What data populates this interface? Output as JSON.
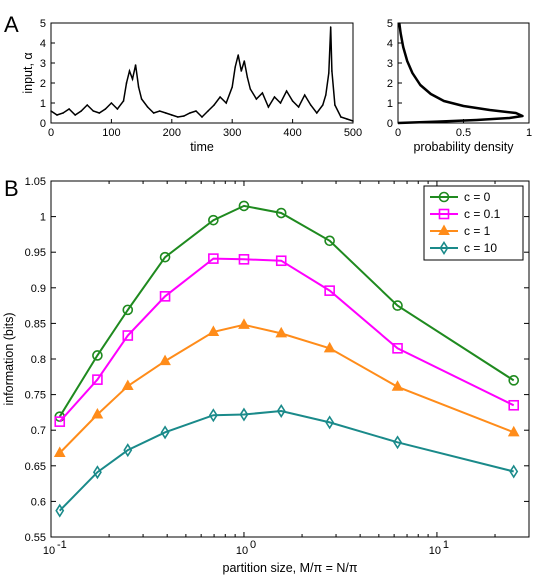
{
  "panel_labels": {
    "a": "A",
    "b": "B"
  },
  "chart_data": [
    {
      "type": "line",
      "panel": "A-left",
      "xlabel": "time",
      "ylabel": "input, α",
      "xlim": [
        0,
        500
      ],
      "ylim": [
        0,
        5
      ],
      "xticks": [
        "0",
        "100",
        "200",
        "300",
        "400",
        "500"
      ],
      "yticks": [
        "0",
        "1",
        "2",
        "3",
        "4",
        "5"
      ],
      "grid": false,
      "series": [
        {
          "color": "#000000",
          "x": [
            0,
            10,
            20,
            30,
            40,
            50,
            60,
            70,
            80,
            90,
            100,
            110,
            120,
            125,
            130,
            135,
            140,
            145,
            150,
            160,
            170,
            180,
            190,
            200,
            210,
            220,
            230,
            240,
            250,
            260,
            270,
            280,
            290,
            300,
            305,
            310,
            315,
            320,
            325,
            330,
            340,
            350,
            360,
            370,
            380,
            390,
            400,
            410,
            420,
            430,
            440,
            450,
            455,
            460,
            463,
            465,
            470,
            480,
            490,
            500
          ],
          "values": [
            0.6,
            0.4,
            0.5,
            0.7,
            0.4,
            0.6,
            0.9,
            0.6,
            0.5,
            0.7,
            1.0,
            0.7,
            1.1,
            2.0,
            2.6,
            2.2,
            2.9,
            1.8,
            1.2,
            0.8,
            0.5,
            0.6,
            0.5,
            0.4,
            0.3,
            0.35,
            0.5,
            0.6,
            0.3,
            0.6,
            0.9,
            1.3,
            1.0,
            1.8,
            2.8,
            3.4,
            2.6,
            3.1,
            2.3,
            1.7,
            1.2,
            1.5,
            0.8,
            1.3,
            1.0,
            1.6,
            1.1,
            0.8,
            1.4,
            0.9,
            0.5,
            0.9,
            1.4,
            2.5,
            4.8,
            2.6,
            0.9,
            0.3,
            0.2,
            0.1
          ]
        }
      ]
    },
    {
      "type": "line",
      "panel": "A-right",
      "xlabel": "probability density",
      "ylabel": "",
      "xlim": [
        0,
        1
      ],
      "ylim": [
        0,
        5
      ],
      "xticks": [
        "0",
        "0.5",
        "1"
      ],
      "yticks": [
        "0",
        "1",
        "2",
        "3",
        "4",
        "5"
      ],
      "grid": false,
      "series": [
        {
          "color": "#000000",
          "x": [
            0,
            0.3,
            0.6,
            0.85,
            0.95,
            0.9,
            0.7,
            0.5,
            0.35,
            0.25,
            0.17,
            0.11,
            0.07,
            0.04,
            0.02,
            0.01
          ],
          "values": [
            0,
            0.07,
            0.15,
            0.25,
            0.35,
            0.5,
            0.65,
            0.85,
            1.1,
            1.45,
            1.9,
            2.5,
            3.1,
            3.8,
            4.5,
            5.0
          ]
        }
      ]
    },
    {
      "type": "line",
      "panel": "B",
      "xlabel": "partition size, M/π = N/π",
      "ylabel": "information (bits)",
      "xscale": "log",
      "xlim": [
        0.1,
        30
      ],
      "ylim": [
        0.55,
        1.05
      ],
      "xticks": [
        {
          "base": "10",
          "exp": "-1"
        },
        {
          "base": "10",
          "exp": "0"
        },
        {
          "base": "10",
          "exp": "1"
        }
      ],
      "yticks": [
        "0.55",
        "0.6",
        "0.65",
        "0.7",
        "0.75",
        "0.8",
        "0.85",
        "0.9",
        "0.95",
        "1",
        "1.05"
      ],
      "grid": false,
      "legend_position": "top-right",
      "x": [
        0.111,
        0.174,
        0.25,
        0.39,
        0.694,
        1.0,
        1.56,
        2.78,
        6.25,
        25.0
      ],
      "series": [
        {
          "name": "c = 0",
          "color": "#1f8a1f",
          "marker": "circle",
          "values": [
            0.719,
            0.805,
            0.869,
            0.943,
            0.995,
            1.015,
            1.005,
            0.966,
            0.875,
            0.77
          ]
        },
        {
          "name": "c = 0.1",
          "color": "#ff00ff",
          "marker": "square",
          "values": [
            0.712,
            0.771,
            0.833,
            0.888,
            0.941,
            0.94,
            0.938,
            0.896,
            0.815,
            0.735
          ]
        },
        {
          "name": "c = 1",
          "color": "#ff8c1a",
          "marker": "triangle",
          "values": [
            0.668,
            0.722,
            0.762,
            0.797,
            0.838,
            0.848,
            0.836,
            0.815,
            0.761,
            0.697
          ]
        },
        {
          "name": "c = 10",
          "color": "#1a8a8a",
          "marker": "diamond",
          "values": [
            0.587,
            0.641,
            0.672,
            0.697,
            0.721,
            0.722,
            0.727,
            0.711,
            0.683,
            0.642
          ]
        }
      ]
    }
  ]
}
